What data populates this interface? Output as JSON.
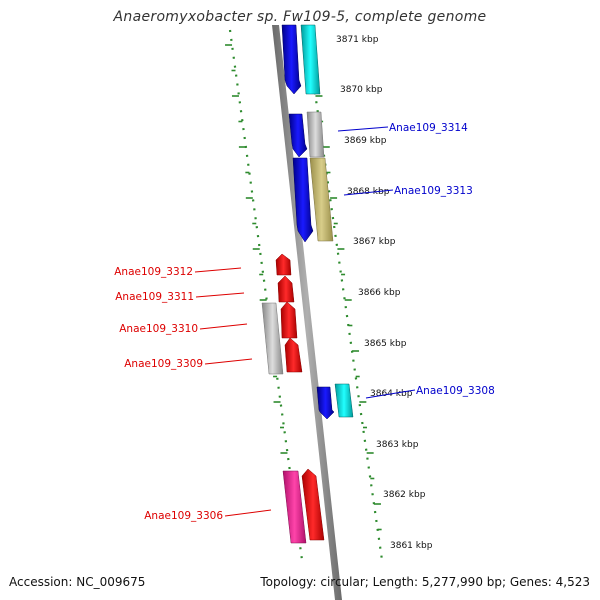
{
  "title": "Anaeromyxobacter sp. Fw109-5, complete genome",
  "footer": {
    "accession": "Accession: NC_009675",
    "topology": "Topology: circular; Length: 5,277,990 bp; Genes: 4,523"
  },
  "colors": {
    "backbone": "#8a8a8a",
    "ticks": "#2e8b2e",
    "label_forward": "#0000cc",
    "label_reverse": "#dd0000"
  },
  "scale_labels": [
    "3871 kbp",
    "3870 kbp",
    "3869 kbp",
    "3868 kbp",
    "3867 kbp",
    "3866 kbp",
    "3865 kbp",
    "3864 kbp",
    "3863 kbp",
    "3862 kbp",
    "3861 kbp"
  ],
  "gene_labels": [
    {
      "text": "Anae109_3314",
      "strand": "forward"
    },
    {
      "text": "Anae109_3313",
      "strand": "forward"
    },
    {
      "text": "Anae109_3312",
      "strand": "reverse"
    },
    {
      "text": "Anae109_3311",
      "strand": "reverse"
    },
    {
      "text": "Anae109_3310",
      "strand": "reverse"
    },
    {
      "text": "Anae109_3309",
      "strand": "reverse"
    },
    {
      "text": "Anae109_3308",
      "strand": "forward"
    },
    {
      "text": "Anae109_3306",
      "strand": "reverse"
    }
  ]
}
